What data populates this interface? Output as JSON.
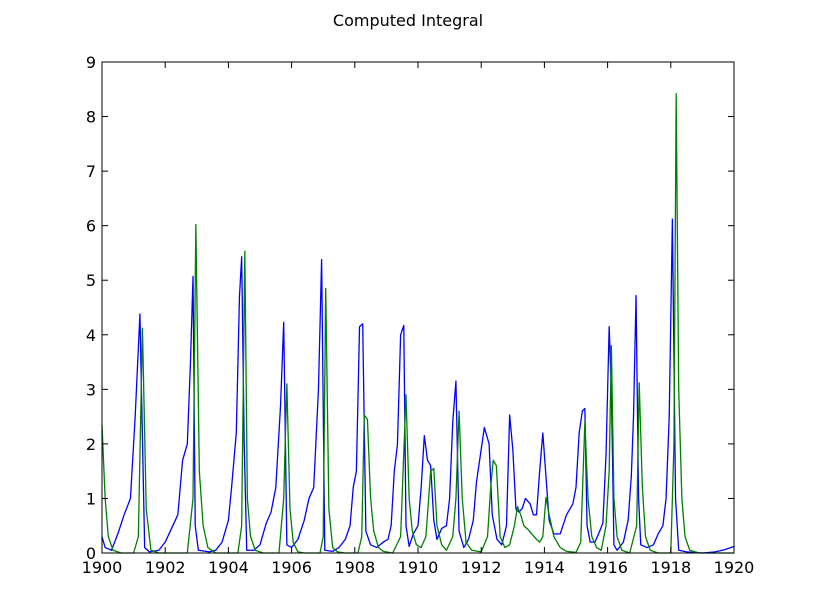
{
  "chart_data": {
    "type": "line",
    "title": "Computed Integral",
    "xlabel": "",
    "ylabel": "",
    "xlim": [
      1900,
      1920
    ],
    "ylim": [
      0,
      9
    ],
    "xticks": [
      "1900",
      "1902",
      "1904",
      "1906",
      "1908",
      "1910",
      "1912",
      "1914",
      "1916",
      "1918",
      "1920"
    ],
    "yticks": [
      "0",
      "1",
      "2",
      "3",
      "4",
      "5",
      "6",
      "7",
      "8",
      "9"
    ],
    "grid": false,
    "legend": "none",
    "series": [
      {
        "color": "#0000ff",
        "points": [
          [
            1900.0,
            0.3
          ],
          [
            1900.1,
            0.1
          ],
          [
            1900.3,
            0.05
          ],
          [
            1900.5,
            0.35
          ],
          [
            1900.7,
            0.7
          ],
          [
            1900.9,
            1.0
          ],
          [
            1901.05,
            2.5
          ],
          [
            1901.2,
            4.38
          ],
          [
            1901.35,
            0.1
          ],
          [
            1901.5,
            0.02
          ],
          [
            1901.8,
            0.05
          ],
          [
            1902.0,
            0.2
          ],
          [
            1902.2,
            0.45
          ],
          [
            1902.4,
            0.7
          ],
          [
            1902.55,
            1.7
          ],
          [
            1902.7,
            2.0
          ],
          [
            1902.8,
            3.5
          ],
          [
            1902.88,
            5.07
          ],
          [
            1902.95,
            0.5
          ],
          [
            1903.05,
            0.05
          ],
          [
            1903.4,
            0.02
          ],
          [
            1903.6,
            0.05
          ],
          [
            1903.8,
            0.2
          ],
          [
            1904.0,
            0.6
          ],
          [
            1904.1,
            1.2
          ],
          [
            1904.25,
            2.2
          ],
          [
            1904.35,
            4.7
          ],
          [
            1904.42,
            5.43
          ],
          [
            1904.5,
            2.0
          ],
          [
            1904.58,
            0.05
          ],
          [
            1904.8,
            0.05
          ],
          [
            1905.0,
            0.15
          ],
          [
            1905.2,
            0.55
          ],
          [
            1905.35,
            0.75
          ],
          [
            1905.5,
            1.2
          ],
          [
            1905.65,
            2.7
          ],
          [
            1905.75,
            4.23
          ],
          [
            1905.85,
            0.15
          ],
          [
            1906.0,
            0.1
          ],
          [
            1906.2,
            0.25
          ],
          [
            1906.4,
            0.6
          ],
          [
            1906.55,
            1.0
          ],
          [
            1906.7,
            1.2
          ],
          [
            1906.85,
            3.0
          ],
          [
            1906.95,
            5.38
          ],
          [
            1907.05,
            0.05
          ],
          [
            1907.3,
            0.03
          ],
          [
            1907.5,
            0.1
          ],
          [
            1907.7,
            0.25
          ],
          [
            1907.85,
            0.5
          ],
          [
            1907.95,
            1.2
          ],
          [
            1908.05,
            1.5
          ],
          [
            1908.15,
            4.15
          ],
          [
            1908.25,
            4.2
          ],
          [
            1908.35,
            0.4
          ],
          [
            1908.5,
            0.15
          ],
          [
            1908.7,
            0.1
          ],
          [
            1908.9,
            0.2
          ],
          [
            1909.05,
            0.25
          ],
          [
            1909.15,
            0.5
          ],
          [
            1909.25,
            1.5
          ],
          [
            1909.35,
            2.0
          ],
          [
            1909.45,
            4.0
          ],
          [
            1909.55,
            4.17
          ],
          [
            1909.62,
            0.5
          ],
          [
            1909.72,
            0.12
          ],
          [
            1909.85,
            0.35
          ],
          [
            1910.0,
            0.5
          ],
          [
            1910.1,
            1.2
          ],
          [
            1910.2,
            2.15
          ],
          [
            1910.3,
            1.7
          ],
          [
            1910.4,
            1.6
          ],
          [
            1910.5,
            0.6
          ],
          [
            1910.6,
            0.25
          ],
          [
            1910.75,
            0.45
          ],
          [
            1910.9,
            0.5
          ],
          [
            1911.0,
            1.0
          ],
          [
            1911.1,
            2.4
          ],
          [
            1911.2,
            3.15
          ],
          [
            1911.3,
            0.4
          ],
          [
            1911.45,
            0.1
          ],
          [
            1911.6,
            0.25
          ],
          [
            1911.75,
            0.6
          ],
          [
            1911.85,
            1.3
          ],
          [
            1911.95,
            1.7
          ],
          [
            1912.1,
            2.3
          ],
          [
            1912.25,
            2.0
          ],
          [
            1912.35,
            0.7
          ],
          [
            1912.5,
            0.25
          ],
          [
            1912.65,
            0.15
          ],
          [
            1912.8,
            0.5
          ],
          [
            1912.9,
            2.53
          ],
          [
            1913.0,
            1.9
          ],
          [
            1913.1,
            0.8
          ],
          [
            1913.2,
            0.75
          ],
          [
            1913.3,
            0.82
          ],
          [
            1913.4,
            1.0
          ],
          [
            1913.55,
            0.9
          ],
          [
            1913.65,
            0.7
          ],
          [
            1913.75,
            0.7
          ],
          [
            1913.85,
            1.5
          ],
          [
            1913.95,
            2.2
          ],
          [
            1914.05,
            1.4
          ],
          [
            1914.15,
            0.6
          ],
          [
            1914.3,
            0.35
          ],
          [
            1914.5,
            0.35
          ],
          [
            1914.7,
            0.7
          ],
          [
            1914.9,
            0.9
          ],
          [
            1915.0,
            1.2
          ],
          [
            1915.1,
            2.2
          ],
          [
            1915.2,
            2.6
          ],
          [
            1915.28,
            2.65
          ],
          [
            1915.35,
            0.5
          ],
          [
            1915.45,
            0.2
          ],
          [
            1915.6,
            0.2
          ],
          [
            1915.75,
            0.4
          ],
          [
            1915.85,
            0.55
          ],
          [
            1915.95,
            1.8
          ],
          [
            1916.05,
            4.15
          ],
          [
            1916.12,
            3.0
          ],
          [
            1916.2,
            0.15
          ],
          [
            1916.3,
            0.05
          ],
          [
            1916.5,
            0.2
          ],
          [
            1916.65,
            0.6
          ],
          [
            1916.75,
            1.4
          ],
          [
            1916.82,
            2.5
          ],
          [
            1916.9,
            4.72
          ],
          [
            1916.98,
            1.0
          ],
          [
            1917.05,
            0.15
          ],
          [
            1917.25,
            0.1
          ],
          [
            1917.45,
            0.15
          ],
          [
            1917.6,
            0.35
          ],
          [
            1917.75,
            0.5
          ],
          [
            1917.85,
            1.0
          ],
          [
            1917.95,
            2.5
          ],
          [
            1918.05,
            6.12
          ],
          [
            1918.15,
            1.0
          ],
          [
            1918.25,
            0.05
          ],
          [
            1918.5,
            0.02
          ],
          [
            1919.0,
            0.0
          ],
          [
            1919.4,
            0.02
          ],
          [
            1919.7,
            0.06
          ],
          [
            1920.0,
            0.12
          ]
        ]
      },
      {
        "color": "#008000",
        "points": [
          [
            1900.0,
            2.35
          ],
          [
            1900.1,
            1.0
          ],
          [
            1900.2,
            0.3
          ],
          [
            1900.35,
            0.05
          ],
          [
            1900.6,
            0.0
          ],
          [
            1901.0,
            0.0
          ],
          [
            1901.15,
            0.3
          ],
          [
            1901.28,
            4.12
          ],
          [
            1901.4,
            0.8
          ],
          [
            1901.55,
            0.05
          ],
          [
            1901.8,
            0.0
          ],
          [
            1902.7,
            0.0
          ],
          [
            1902.88,
            1.0
          ],
          [
            1902.97,
            6.02
          ],
          [
            1903.08,
            1.5
          ],
          [
            1903.2,
            0.5
          ],
          [
            1903.35,
            0.1
          ],
          [
            1903.6,
            0.0
          ],
          [
            1904.3,
            0.0
          ],
          [
            1904.42,
            0.5
          ],
          [
            1904.52,
            5.53
          ],
          [
            1904.6,
            1.0
          ],
          [
            1904.7,
            0.3
          ],
          [
            1904.85,
            0.05
          ],
          [
            1905.1,
            0.0
          ],
          [
            1905.6,
            0.0
          ],
          [
            1905.75,
            1.0
          ],
          [
            1905.85,
            3.1
          ],
          [
            1905.95,
            0.8
          ],
          [
            1906.05,
            0.2
          ],
          [
            1906.2,
            0.02
          ],
          [
            1906.4,
            0.0
          ],
          [
            1906.9,
            0.0
          ],
          [
            1907.0,
            0.3
          ],
          [
            1907.08,
            4.85
          ],
          [
            1907.18,
            0.8
          ],
          [
            1907.3,
            0.1
          ],
          [
            1907.45,
            0.02
          ],
          [
            1907.7,
            0.0
          ],
          [
            1908.1,
            0.0
          ],
          [
            1908.22,
            0.3
          ],
          [
            1908.3,
            2.53
          ],
          [
            1908.4,
            2.45
          ],
          [
            1908.5,
            1.0
          ],
          [
            1908.6,
            0.4
          ],
          [
            1908.75,
            0.1
          ],
          [
            1908.9,
            0.03
          ],
          [
            1909.2,
            0.0
          ],
          [
            1909.45,
            0.3
          ],
          [
            1909.62,
            2.9
          ],
          [
            1909.72,
            1.0
          ],
          [
            1909.82,
            0.4
          ],
          [
            1909.95,
            0.15
          ],
          [
            1910.1,
            0.1
          ],
          [
            1910.25,
            0.3
          ],
          [
            1910.4,
            1.5
          ],
          [
            1910.5,
            1.55
          ],
          [
            1910.6,
            0.5
          ],
          [
            1910.75,
            0.15
          ],
          [
            1910.9,
            0.05
          ],
          [
            1911.1,
            0.3
          ],
          [
            1911.2,
            1.0
          ],
          [
            1911.3,
            2.6
          ],
          [
            1911.4,
            1.0
          ],
          [
            1911.52,
            0.2
          ],
          [
            1911.7,
            0.05
          ],
          [
            1912.0,
            0.02
          ],
          [
            1912.2,
            0.3
          ],
          [
            1912.3,
            1.2
          ],
          [
            1912.38,
            1.7
          ],
          [
            1912.48,
            1.6
          ],
          [
            1912.6,
            0.3
          ],
          [
            1912.75,
            0.1
          ],
          [
            1912.9,
            0.15
          ],
          [
            1913.05,
            0.5
          ],
          [
            1913.15,
            0.85
          ],
          [
            1913.25,
            0.7
          ],
          [
            1913.35,
            0.5
          ],
          [
            1913.5,
            0.42
          ],
          [
            1913.6,
            0.35
          ],
          [
            1913.75,
            0.25
          ],
          [
            1913.85,
            0.2
          ],
          [
            1913.95,
            0.3
          ],
          [
            1914.05,
            1.02
          ],
          [
            1914.15,
            0.7
          ],
          [
            1914.3,
            0.3
          ],
          [
            1914.5,
            0.1
          ],
          [
            1914.7,
            0.03
          ],
          [
            1915.0,
            0.01
          ],
          [
            1915.15,
            0.2
          ],
          [
            1915.28,
            2.4
          ],
          [
            1915.38,
            1.0
          ],
          [
            1915.5,
            0.3
          ],
          [
            1915.65,
            0.1
          ],
          [
            1915.8,
            0.05
          ],
          [
            1915.95,
            0.5
          ],
          [
            1916.05,
            1.5
          ],
          [
            1916.12,
            3.8
          ],
          [
            1916.2,
            1.0
          ],
          [
            1916.3,
            0.3
          ],
          [
            1916.45,
            0.05
          ],
          [
            1916.7,
            0.0
          ],
          [
            1916.92,
            0.5
          ],
          [
            1917.0,
            3.12
          ],
          [
            1917.1,
            1.2
          ],
          [
            1917.2,
            0.3
          ],
          [
            1917.35,
            0.05
          ],
          [
            1917.6,
            0.0
          ],
          [
            1918.0,
            0.0
          ],
          [
            1918.1,
            2.0
          ],
          [
            1918.17,
            8.42
          ],
          [
            1918.25,
            3.0
          ],
          [
            1918.35,
            1.0
          ],
          [
            1918.45,
            0.3
          ],
          [
            1918.6,
            0.05
          ],
          [
            1918.9,
            0.0
          ],
          [
            1920.0,
            0.0
          ]
        ]
      }
    ]
  }
}
